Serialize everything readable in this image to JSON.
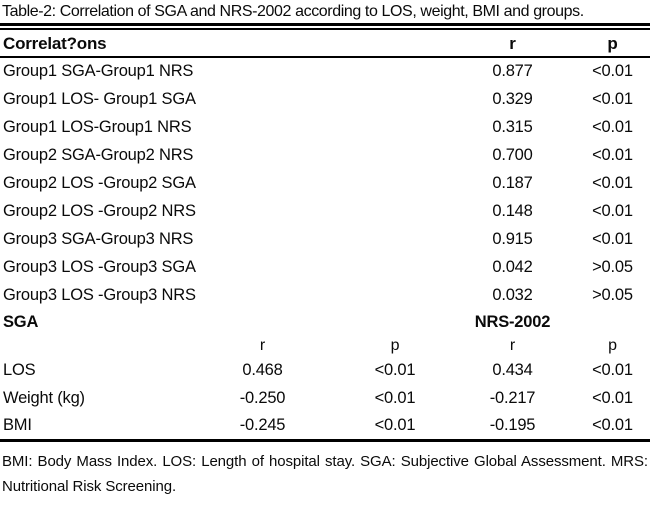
{
  "title": "Table-2: Correlation of SGA and NRS-2002 according to LOS, weight, BMI and groups.",
  "correlations": {
    "header": {
      "label": "Correlat?ons",
      "r": "r",
      "p": "p"
    },
    "rows": [
      {
        "label": "Group1 SGA-Group1 NRS",
        "r": "0.877",
        "p": "<0.01"
      },
      {
        "label": "Group1 LOS- Group1 SGA",
        "r": "0.329",
        "p": "<0.01"
      },
      {
        "label": "Group1 LOS-Group1 NRS",
        "r": "0.315",
        "p": "<0.01"
      },
      {
        "label": "Group2 SGA-Group2 NRS",
        "r": "0.700",
        "p": "<0.01"
      },
      {
        "label": "Group2 LOS -Group2 SGA",
        "r": "0.187",
        "p": "<0.01"
      },
      {
        "label": "Group2 LOS -Group2 NRS",
        "r": "0.148",
        "p": "<0.01"
      },
      {
        "label": "Group3 SGA-Group3 NRS",
        "r": "0.915",
        "p": "<0.01"
      },
      {
        "label": "Group3 LOS -Group3 SGA",
        "r": "0.042",
        "p": ">0.05"
      },
      {
        "label": "Group3 LOS -Group3 NRS",
        "r": "0.032",
        "p": ">0.05"
      }
    ]
  },
  "measures": {
    "sga_label": "SGA",
    "nrs_label": "NRS-2002",
    "subheader": {
      "r1": "r",
      "p1": "p",
      "r2": "r",
      "p2": "p"
    },
    "rows": [
      {
        "label": "LOS",
        "sga_r": "0.468",
        "sga_p": "<0.01",
        "nrs_r": "0.434",
        "nrs_p": "<0.01"
      },
      {
        "label": "Weight (kg)",
        "sga_r": "-0.250",
        "sga_p": "<0.01",
        "nrs_r": "-0.217",
        "nrs_p": "<0.01"
      },
      {
        "label": "BMI",
        "sga_r": "-0.245",
        "sga_p": "<0.01",
        "nrs_r": "-0.195",
        "nrs_p": "<0.01"
      }
    ]
  },
  "footnote": {
    "line1": "BMI: Body Mass Index. LOS: Length of hospital stay. SGA: Subjective Global Assessment. MRS:",
    "line2": "Nutritional Risk Screening."
  },
  "colors": {
    "text": "#0a0a0a",
    "rule": "#000000",
    "background": "#ffffff"
  }
}
